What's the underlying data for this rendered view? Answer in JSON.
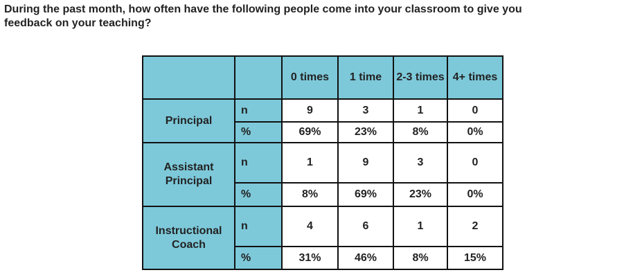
{
  "question": {
    "lines": [
      "During the past month, how often have the following people come into your classroom to give you",
      "feedback on your teaching?"
    ]
  },
  "table": {
    "header": [
      "0 times",
      "1 time",
      "2-3 times",
      "4+ times"
    ],
    "groups": [
      {
        "label": "Principal",
        "rows": [
          {
            "stat": "n",
            "values": [
              "9",
              "3",
              "1",
              "0"
            ]
          },
          {
            "stat": "%",
            "values": [
              "69%",
              "23%",
              "8%",
              "0%"
            ]
          }
        ]
      },
      {
        "label": "Assistant Principal",
        "rows": [
          {
            "stat": "n",
            "values": [
              "1",
              "9",
              "3",
              "0"
            ]
          },
          {
            "stat": "%",
            "values": [
              "8%",
              "69%",
              "23%",
              "0%"
            ]
          }
        ]
      },
      {
        "label": "Instructional Coach",
        "rows": [
          {
            "stat": "n",
            "values": [
              "4",
              "6",
              "1",
              "2"
            ]
          },
          {
            "stat": "%",
            "values": [
              "31%",
              "46%",
              "8%",
              "15%"
            ]
          }
        ]
      }
    ]
  }
}
